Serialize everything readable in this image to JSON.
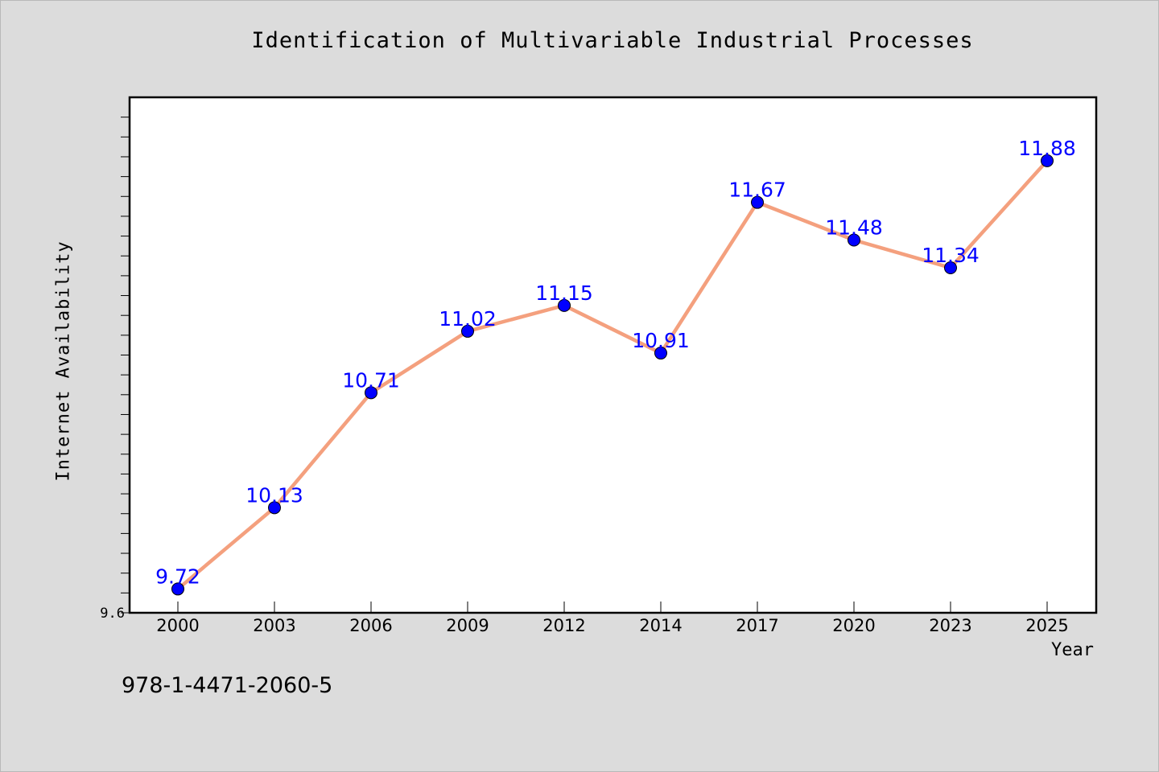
{
  "chart_data": {
    "type": "line",
    "title": "Identification of Multivariable Industrial Processes",
    "xlabel": "Year",
    "ylabel": "Internet Availability",
    "categories": [
      "2000",
      "2003",
      "2006",
      "2009",
      "2012",
      "2014",
      "2017",
      "2020",
      "2023",
      "2025"
    ],
    "series": [
      {
        "values": [
          9.72,
          10.13,
          10.71,
          11.02,
          11.15,
          10.91,
          11.67,
          11.48,
          11.34,
          11.88
        ]
      }
    ],
    "data_labels": [
      "9.72",
      "10.13",
      "10.71",
      "11.02",
      "11.15",
      "10.91",
      "11.67",
      "11.48",
      "11.34",
      "11.88"
    ],
    "ylim": [
      9.6,
      12.2
    ],
    "ytick_labels": [
      "9.6"
    ],
    "grid": false,
    "colors": {
      "line": "#f4a07e",
      "marker": "#0000ff",
      "data_label": "#0000ff",
      "plot_background": "#ffffff",
      "page_background": "#dcdcdc"
    }
  },
  "footer": {
    "isbn": "978-1-4471-2060-5"
  }
}
